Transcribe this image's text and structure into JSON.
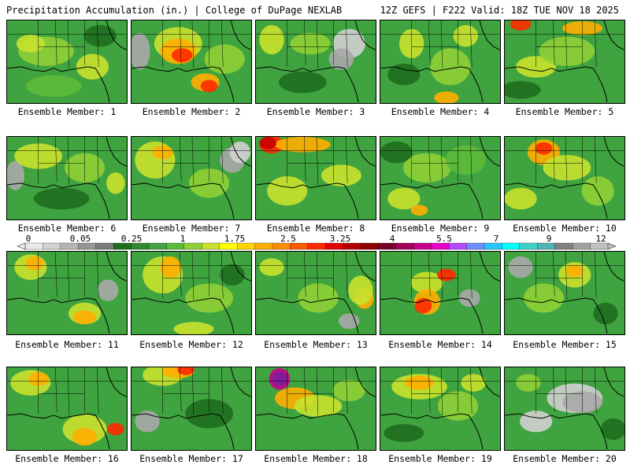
{
  "header": {
    "left": "Precipitation Accumulation (in.) | College of DuPage NEXLAB",
    "right": "12Z GEFS | F222 Valid: 18Z TUE NOV 18 2025"
  },
  "member_prefix": "Ensemble Member:",
  "members": [
    {
      "label": "Ensemble Member: 1"
    },
    {
      "label": "Ensemble Member: 2"
    },
    {
      "label": "Ensemble Member: 3"
    },
    {
      "label": "Ensemble Member: 4"
    },
    {
      "label": "Ensemble Member: 5"
    },
    {
      "label": "Ensemble Member: 6"
    },
    {
      "label": "Ensemble Member: 7"
    },
    {
      "label": "Ensemble Member: 8"
    },
    {
      "label": "Ensemble Member: 9"
    },
    {
      "label": "Ensemble Member: 10"
    },
    {
      "label": "Ensemble Member: 11"
    },
    {
      "label": "Ensemble Member: 12"
    },
    {
      "label": "Ensemble Member: 13"
    },
    {
      "label": "Ensemble Member: 14"
    },
    {
      "label": "Ensemble Member: 15"
    },
    {
      "label": "Ensemble Member: 16"
    },
    {
      "label": "Ensemble Member: 17"
    },
    {
      "label": "Ensemble Member: 18"
    },
    {
      "label": "Ensemble Member: 19"
    },
    {
      "label": "Ensemble Member: 20"
    }
  ],
  "colorbar": {
    "tick_labels": [
      "0",
      "0.05",
      "0.25",
      "1",
      "1.75",
      "2.5",
      "3.25",
      "4",
      "5.5",
      "7",
      "9",
      "12"
    ],
    "colors": [
      "#ebebeb",
      "#d2d2d2",
      "#b4b4b4",
      "#969696",
      "#7a7a7a",
      "#1e6e1e",
      "#2e8a2e",
      "#3fa33f",
      "#5dbb3a",
      "#8fd036",
      "#c9e22d",
      "#ffff00",
      "#ffd400",
      "#ffae00",
      "#ff8c00",
      "#ff5a00",
      "#ff2a00",
      "#e60000",
      "#b40000",
      "#8c0000",
      "#780028",
      "#a0005a",
      "#c8008c",
      "#e600c8",
      "#b44bff",
      "#6e8cff",
      "#28c8ff",
      "#00ffff",
      "#3cd2c8",
      "#50b4b4",
      "#808080",
      "#a0a0a0",
      "#c0c0c0"
    ]
  }
}
